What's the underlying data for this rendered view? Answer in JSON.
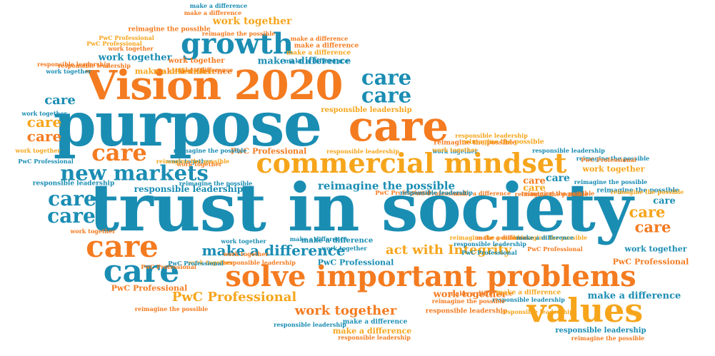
{
  "colors": {
    "blue": "#1a8db3",
    "orange": "#f47b20",
    "gold": "#f6a51b"
  },
  "words": [
    {
      "text": "trust in society",
      "color": "#1a8db3"
    },
    {
      "text": "purpose",
      "color": "#1a8db3"
    },
    {
      "text": "Vision 2020",
      "color": "#f47b20"
    },
    {
      "text": "care",
      "color": "#f47b20"
    },
    {
      "text": "commercial mindset",
      "color": "#f6a51b"
    },
    {
      "text": "solve important problems",
      "color": "#f47b20"
    },
    {
      "text": "values",
      "color": "#f6a51b"
    },
    {
      "text": "growth",
      "color": "#1a8db3"
    },
    {
      "text": "new markets",
      "color": "#1a8db3"
    },
    {
      "text": "care",
      "color": "#f47b20"
    },
    {
      "text": "care",
      "color": "#1a8db3"
    },
    {
      "text": "care",
      "color": "#1a8db3"
    },
    {
      "text": "care",
      "color": "#1a8db3"
    },
    {
      "text": "care",
      "color": "#f47b20"
    },
    {
      "text": "care",
      "color": "#1a8db3"
    },
    {
      "text": "care",
      "color": "#1a8db3"
    },
    {
      "text": "care",
      "color": "#1a8db3"
    },
    {
      "text": "care",
      "color": "#f6a51b"
    },
    {
      "text": "care",
      "color": "#f47b20"
    },
    {
      "text": "care",
      "color": "#1a8db3"
    },
    {
      "text": "care",
      "color": "#f6a51b"
    },
    {
      "text": "care",
      "color": "#f47b20"
    },
    {
      "text": "care",
      "color": "#1a8db3"
    },
    {
      "text": "care",
      "color": "#f6a51b"
    },
    {
      "text": "care",
      "color": "#f47b20"
    },
    {
      "text": "make a difference",
      "color": "#1a8db3"
    },
    {
      "text": "act with Integrity",
      "color": "#f6a51b"
    },
    {
      "text": "reimagine the possible",
      "color": "#1a8db3"
    },
    {
      "text": "work together",
      "color": "#f47b20"
    },
    {
      "text": "PwC Professional",
      "color": "#f6a51b"
    },
    {
      "text": "make a difference",
      "color": "#1a8db3"
    },
    {
      "text": "make a difference",
      "color": "#1a8db3"
    },
    {
      "text": "make a difference",
      "color": "#f47b20"
    },
    {
      "text": "make a difference",
      "color": "#f6a51b"
    },
    {
      "text": "make a difference",
      "color": "#1a8db3"
    },
    {
      "text": "work together",
      "color": "#f6a51b"
    },
    {
      "text": "work together",
      "color": "#1a8db3"
    },
    {
      "text": "work together",
      "color": "#f47b20"
    },
    {
      "text": "work together",
      "color": "#f6a51b"
    },
    {
      "text": "work together",
      "color": "#1a8db3"
    },
    {
      "text": "PwC Professional",
      "color": "#f47b20"
    },
    {
      "text": "PwC Professional",
      "color": "#1a8db3"
    },
    {
      "text": "PwC Professional",
      "color": "#f47b20"
    },
    {
      "text": "PwC Professional",
      "color": "#f47b20"
    },
    {
      "text": "responsible leadership",
      "color": "#1a8db3"
    },
    {
      "text": "responsible leadership",
      "color": "#1a8db3"
    },
    {
      "text": "responsible leadership",
      "color": "#f6a51b"
    },
    {
      "text": "responsible leadership",
      "color": "#1a8db3"
    },
    {
      "text": "responsible leadership",
      "color": "#f47b20"
    },
    {
      "text": "reimagine the possible",
      "color": "#f47b20"
    },
    {
      "text": "reimagine the possible",
      "color": "#1a8db3"
    },
    {
      "text": "reimagine the possible",
      "color": "#f47b20"
    },
    {
      "text": "make a difference",
      "color": "#f47b20"
    },
    {
      "text": "make a difference",
      "color": "#1a8db3"
    },
    {
      "text": "make a difference",
      "color": "#f6a51b"
    },
    {
      "text": "make a difference",
      "color": "#f47b20"
    },
    {
      "text": "make a difference",
      "color": "#f47b20"
    },
    {
      "text": "work together",
      "color": "#f47b20"
    },
    {
      "text": "work together",
      "color": "#1a8db3"
    },
    {
      "text": "work together",
      "color": "#1a8db3"
    },
    {
      "text": "work together",
      "color": "#f6a51b"
    },
    {
      "text": "work together",
      "color": "#f47b20"
    },
    {
      "text": "work together",
      "color": "#f47b20"
    },
    {
      "text": "work together",
      "color": "#1a8db3"
    },
    {
      "text": "work together",
      "color": "#f6a51b"
    },
    {
      "text": "work together",
      "color": "#1a8db3"
    },
    {
      "text": "work together",
      "color": "#f47b20"
    },
    {
      "text": "PwC Professional",
      "color": "#f47b20"
    },
    {
      "text": "PwC Professional",
      "color": "#f6a51b"
    },
    {
      "text": "PwC Professional",
      "color": "#1a8db3"
    },
    {
      "text": "PwC Professional",
      "color": "#f47b20"
    },
    {
      "text": "PwC Professional",
      "color": "#f47b20"
    },
    {
      "text": "PwC Professional",
      "color": "#1a8db3"
    },
    {
      "text": "responsible leadership",
      "color": "#f47b20"
    },
    {
      "text": "responsible leadership",
      "color": "#f6a51b"
    },
    {
      "text": "responsible leadership",
      "color": "#1a8db3"
    },
    {
      "text": "responsible leadership",
      "color": "#f47b20"
    },
    {
      "text": "responsible leadership",
      "color": "#1a8db3"
    },
    {
      "text": "responsible leadership",
      "color": "#f6a51b"
    },
    {
      "text": "responsible leadership",
      "color": "#1a8db3"
    },
    {
      "text": "responsible leadership",
      "color": "#f6a51b"
    },
    {
      "text": "responsible leadership",
      "color": "#f47b20"
    },
    {
      "text": "responsible leadership",
      "color": "#1a8db3"
    },
    {
      "text": "reimagine the possible",
      "color": "#f47b20"
    },
    {
      "text": "reimagine the possible",
      "color": "#f6a51b"
    },
    {
      "text": "reimagine the possible",
      "color": "#f47b20"
    },
    {
      "text": "reimagine the possible",
      "color": "#1a8db3"
    },
    {
      "text": "reimagine the possible",
      "color": "#f6a51b"
    },
    {
      "text": "reimagine the possible",
      "color": "#1a8db3"
    },
    {
      "text": "reimagine the possible",
      "color": "#f6a51b"
    },
    {
      "text": "reimagine the possible",
      "color": "#f47b20"
    },
    {
      "text": "reimagine the possible",
      "color": "#f6a51b"
    },
    {
      "text": "reimagine the possible",
      "color": "#f6a51b"
    },
    {
      "text": "make a difference",
      "color": "#f47b20"
    },
    {
      "text": "make a difference",
      "color": "#1a8db3"
    },
    {
      "text": "make a difference",
      "color": "#f47b20"
    },
    {
      "text": "make a difference",
      "color": "#f6a51b"
    },
    {
      "text": "make a difference",
      "color": "#f47b20"
    },
    {
      "text": "make a difference",
      "color": "#1a8db3"
    },
    {
      "text": "make a difference",
      "color": "#f6a51b"
    },
    {
      "text": "make a difference",
      "color": "#f47b20"
    },
    {
      "text": "make a difference",
      "color": "#1a8db3"
    },
    {
      "text": "make a difference",
      "color": "#1a8db3"
    },
    {
      "text": "work together",
      "color": "#1a8db3"
    },
    {
      "text": "work together",
      "color": "#f47b20"
    },
    {
      "text": "work together",
      "color": "#1a8db3"
    },
    {
      "text": "work together",
      "color": "#f6a51b"
    },
    {
      "text": "PwC Professional",
      "color": "#f47b20"
    },
    {
      "text": "PwC Professional",
      "color": "#f47b20"
    },
    {
      "text": "PwC Professional",
      "color": "#f6a51b"
    },
    {
      "text": "PwC Professional",
      "color": "#1a8db3"
    },
    {
      "text": "responsible leadership",
      "color": "#1a8db3"
    },
    {
      "text": "responsible leadership",
      "color": "#f47b20"
    },
    {
      "text": "reimagine the possible",
      "color": "#f47b20"
    },
    {
      "text": "reimagine the possible",
      "color": "#1a8db3"
    },
    {
      "text": "reimagine the possible",
      "color": "#1a8db3"
    },
    {
      "text": "reimagine the possible",
      "color": "#f47b20"
    },
    {
      "text": "reimagine the possible",
      "color": "#f47b20"
    }
  ]
}
